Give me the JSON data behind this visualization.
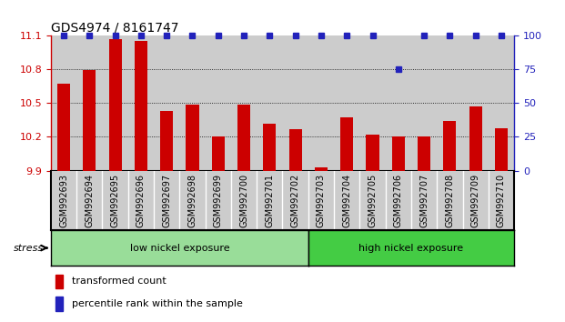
{
  "title": "GDS4974 / 8161747",
  "categories": [
    "GSM992693",
    "GSM992694",
    "GSM992695",
    "GSM992696",
    "GSM992697",
    "GSM992698",
    "GSM992699",
    "GSM992700",
    "GSM992701",
    "GSM992702",
    "GSM992703",
    "GSM992704",
    "GSM992705",
    "GSM992706",
    "GSM992707",
    "GSM992708",
    "GSM992709",
    "GSM992710"
  ],
  "bar_values": [
    10.67,
    10.79,
    11.07,
    11.05,
    10.43,
    10.49,
    10.2,
    10.49,
    10.32,
    10.27,
    9.93,
    10.37,
    10.22,
    10.2,
    10.2,
    10.34,
    10.47,
    10.28
  ],
  "percentile_values": [
    100,
    100,
    100,
    100,
    100,
    100,
    100,
    100,
    100,
    100,
    100,
    100,
    100,
    75,
    100,
    100,
    100,
    100
  ],
  "bar_color": "#cc0000",
  "dot_color": "#2222bb",
  "ylim_left": [
    9.9,
    11.1
  ],
  "ylim_right": [
    0,
    100
  ],
  "yticks_left": [
    9.9,
    10.2,
    10.5,
    10.8,
    11.1
  ],
  "yticks_right": [
    0,
    25,
    50,
    75,
    100
  ],
  "grid_values": [
    10.2,
    10.5,
    10.8
  ],
  "group1_label": "low nickel exposure",
  "group2_label": "high nickel exposure",
  "group1_count": 10,
  "group2_count": 8,
  "group_total": 18,
  "stress_label": "stress",
  "legend_bar_label": "transformed count",
  "legend_dot_label": "percentile rank within the sample",
  "bg_color": "#ffffff",
  "col_bg_color": "#cccccc",
  "group1_color": "#99dd99",
  "group2_color": "#44cc44",
  "title_fontsize": 10,
  "axis_label_fontsize": 7,
  "tick_fontsize": 8,
  "legend_fontsize": 8
}
